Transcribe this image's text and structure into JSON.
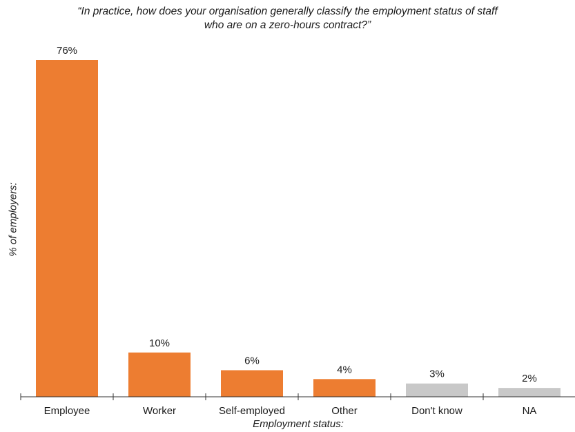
{
  "chart_data": {
    "type": "bar",
    "title_lines": [
      "“In practice, how does your organisation generally classify the employment status of staff",
      "who are on a zero-hours contract?”"
    ],
    "xlabel": "Employment status:",
    "ylabel": "% of employers:",
    "categories": [
      "Employee",
      "Worker",
      "Self-employed",
      "Other",
      "Don't know",
      "NA"
    ],
    "values": [
      76,
      10,
      6,
      4,
      3,
      2
    ],
    "value_labels": [
      "76%",
      "10%",
      "6%",
      "4%",
      "3%",
      "2%"
    ],
    "bar_colors": [
      "#ED7D31",
      "#ED7D31",
      "#ED7D31",
      "#ED7D31",
      "#C8C8C8",
      "#C8C8C8"
    ],
    "ylim": [
      0,
      76
    ],
    "grid": false,
    "legend": "none"
  }
}
